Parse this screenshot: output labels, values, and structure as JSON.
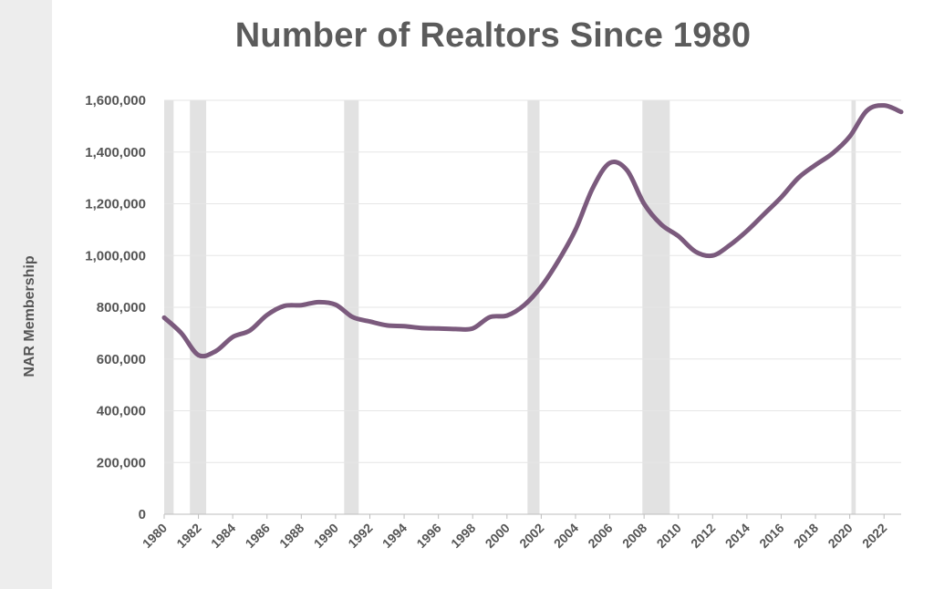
{
  "chart_data": {
    "type": "line",
    "title": "Number of Realtors Since 1980",
    "xlabel": "",
    "ylabel": "NAR Membership",
    "xlim": [
      1980,
      2023
    ],
    "ylim": [
      0,
      1600000
    ],
    "y_ticks": [
      0,
      200000,
      400000,
      600000,
      800000,
      1000000,
      1200000,
      1400000,
      1600000
    ],
    "y_tick_labels": [
      "0",
      "200,000",
      "400,000",
      "600,000",
      "800,000",
      "1,000,000",
      "1,200,000",
      "1,400,000",
      "1,600,000"
    ],
    "x_ticks": [
      1980,
      1982,
      1984,
      1986,
      1988,
      1990,
      1992,
      1994,
      1996,
      1998,
      2000,
      2002,
      2004,
      2006,
      2008,
      2010,
      2012,
      2014,
      2016,
      2018,
      2020,
      2022
    ],
    "x_tick_labels": [
      "1980",
      "1982",
      "1984",
      "1986",
      "1988",
      "1990",
      "1992",
      "1994",
      "1996",
      "1998",
      "2000",
      "2002",
      "2004",
      "2006",
      "2008",
      "2010",
      "2012",
      "2014",
      "2016",
      "2018",
      "2020",
      "2022"
    ],
    "grid": true,
    "line_color": "#7b5a7d",
    "recession_color": "#e2e2e2",
    "recession_bands": [
      [
        1980.0,
        1980.55
      ],
      [
        1981.5,
        1982.45
      ],
      [
        1990.5,
        1991.35
      ],
      [
        2001.2,
        2001.9
      ],
      [
        2007.9,
        2009.5
      ],
      [
        2020.1,
        2020.35
      ]
    ],
    "series": [
      {
        "name": "NAR Membership",
        "x": [
          1980,
          1981,
          1982,
          1983,
          1984,
          1985,
          1986,
          1987,
          1988,
          1989,
          1990,
          1991,
          1992,
          1993,
          1994,
          1995,
          1996,
          1997,
          1998,
          1999,
          2000,
          2001,
          2002,
          2003,
          2004,
          2005,
          2006,
          2007,
          2008,
          2009,
          2010,
          2011,
          2012,
          2013,
          2014,
          2015,
          2016,
          2017,
          2018,
          2019,
          2020,
          2021,
          2022,
          2023
        ],
        "values": [
          760000,
          700000,
          615000,
          630000,
          685000,
          710000,
          770000,
          805000,
          808000,
          820000,
          810000,
          762000,
          745000,
          730000,
          727000,
          720000,
          718000,
          716000,
          718000,
          762000,
          768000,
          808000,
          880000,
          980000,
          1100000,
          1260000,
          1358000,
          1330000,
          1200000,
          1120000,
          1075000,
          1015000,
          1000000,
          1040000,
          1095000,
          1160000,
          1225000,
          1300000,
          1350000,
          1395000,
          1460000,
          1560000,
          1580000,
          1555000
        ]
      }
    ]
  }
}
